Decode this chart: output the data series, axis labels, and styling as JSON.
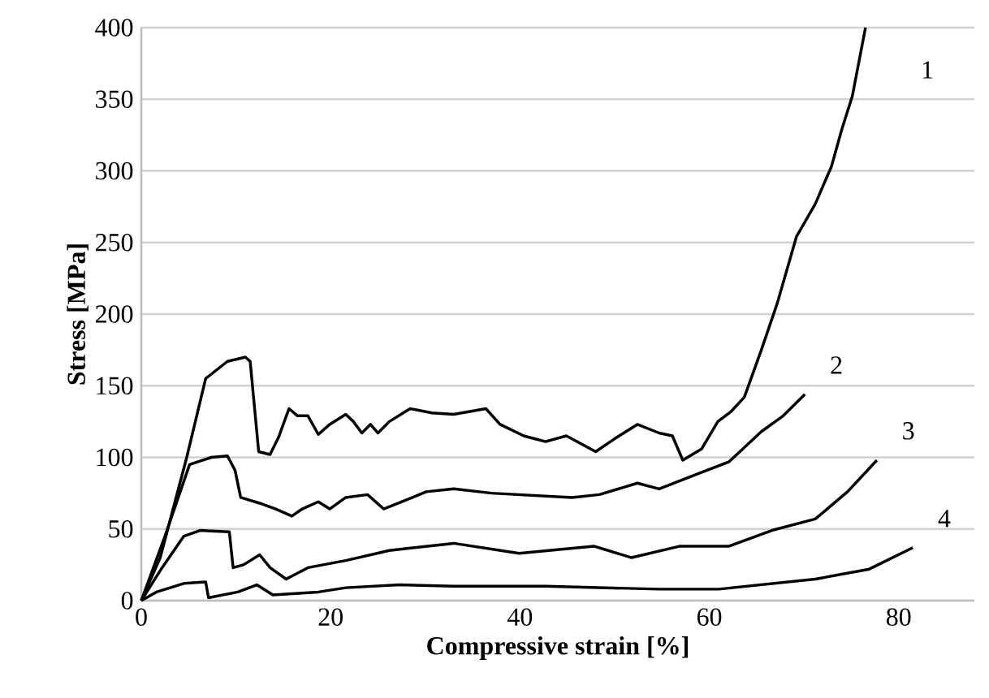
{
  "chart_data": {
    "type": "line",
    "xlabel": "Compressive strain [%]",
    "ylabel": "Stress [MPa]",
    "xlim": [
      0,
      88
    ],
    "xticks": [
      0,
      20,
      40,
      60,
      80
    ],
    "ylim": [
      0,
      400
    ],
    "yticks": [
      0,
      50,
      100,
      150,
      200,
      250,
      300,
      350,
      400
    ],
    "grid": "y",
    "marker": "none",
    "line_style": "solid",
    "series": [
      {
        "name": "1",
        "color": "#000000",
        "x": [
          0,
          2,
          4.8,
          6.8,
          9.1,
          11,
          11.5,
          12.4,
          13.6,
          14.5,
          15.6,
          16.5,
          17.6,
          18.7,
          19.9,
          21.6,
          22.4,
          23.3,
          24.2,
          25,
          26.2,
          28.4,
          30.7,
          33,
          34.7,
          36.4,
          37.9,
          40.4,
          42.7,
          44.9,
          48,
          50,
          52.4,
          54.7,
          56.1,
          57.2,
          59.2,
          60.9,
          62.3,
          63.7,
          65.5,
          67.2,
          69.2,
          71.2,
          72.9,
          74,
          75.1,
          76.5
        ],
        "values": [
          0,
          30,
          100,
          155,
          167,
          170,
          167,
          104,
          102,
          114,
          134,
          129,
          129,
          116,
          123,
          130,
          125,
          117,
          123,
          117,
          125,
          134,
          131,
          130,
          132,
          134,
          123,
          115,
          111,
          115,
          104,
          113,
          123,
          117,
          115,
          98,
          106,
          125,
          132,
          142,
          175,
          208,
          254,
          277,
          303,
          329,
          352,
          400
        ]
      },
      {
        "name": "2",
        "color": "#000000",
        "x": [
          0,
          2.5,
          5.1,
          7.4,
          9.1,
          9.9,
          10.5,
          12.5,
          14.2,
          15.9,
          17,
          18.7,
          19.9,
          21.6,
          23.9,
          25.6,
          27.9,
          30.1,
          33,
          37,
          45.5,
          48.4,
          52.4,
          54.7,
          58.6,
          62.1,
          65.5,
          67.8,
          70.1
        ],
        "values": [
          0,
          45,
          95,
          100,
          101,
          91,
          72,
          68,
          64,
          59,
          64,
          69,
          64,
          72,
          74,
          64,
          70,
          76,
          78,
          75,
          72,
          74,
          82,
          78,
          88,
          97,
          118,
          129,
          144
        ]
      },
      {
        "name": "3",
        "color": "#000000",
        "x": [
          0,
          2.2,
          4.5,
          6.2,
          9.3,
          9.7,
          10.8,
          12.5,
          13.6,
          15.3,
          17.6,
          21.6,
          26.2,
          33,
          39.9,
          47.8,
          51.8,
          56.9,
          62.1,
          66.6,
          71.2,
          74.6,
          77.7
        ],
        "values": [
          0,
          23,
          45,
          49,
          48,
          23,
          25,
          32,
          23,
          15,
          23,
          28,
          35,
          40,
          33,
          38,
          30,
          38,
          38,
          49,
          57,
          76,
          98
        ]
      },
      {
        "name": "4",
        "color": "#000000",
        "x": [
          0,
          1.6,
          4.5,
          6.8,
          7.1,
          10.2,
          12.2,
          13.9,
          18.7,
          21.6,
          27.3,
          33,
          42.7,
          54.7,
          61,
          71.2,
          76.9,
          81.5
        ],
        "values": [
          0,
          6,
          12,
          13,
          2,
          6,
          11,
          4,
          6,
          9,
          11,
          10,
          10,
          8,
          8,
          15,
          22,
          37
        ]
      }
    ]
  }
}
